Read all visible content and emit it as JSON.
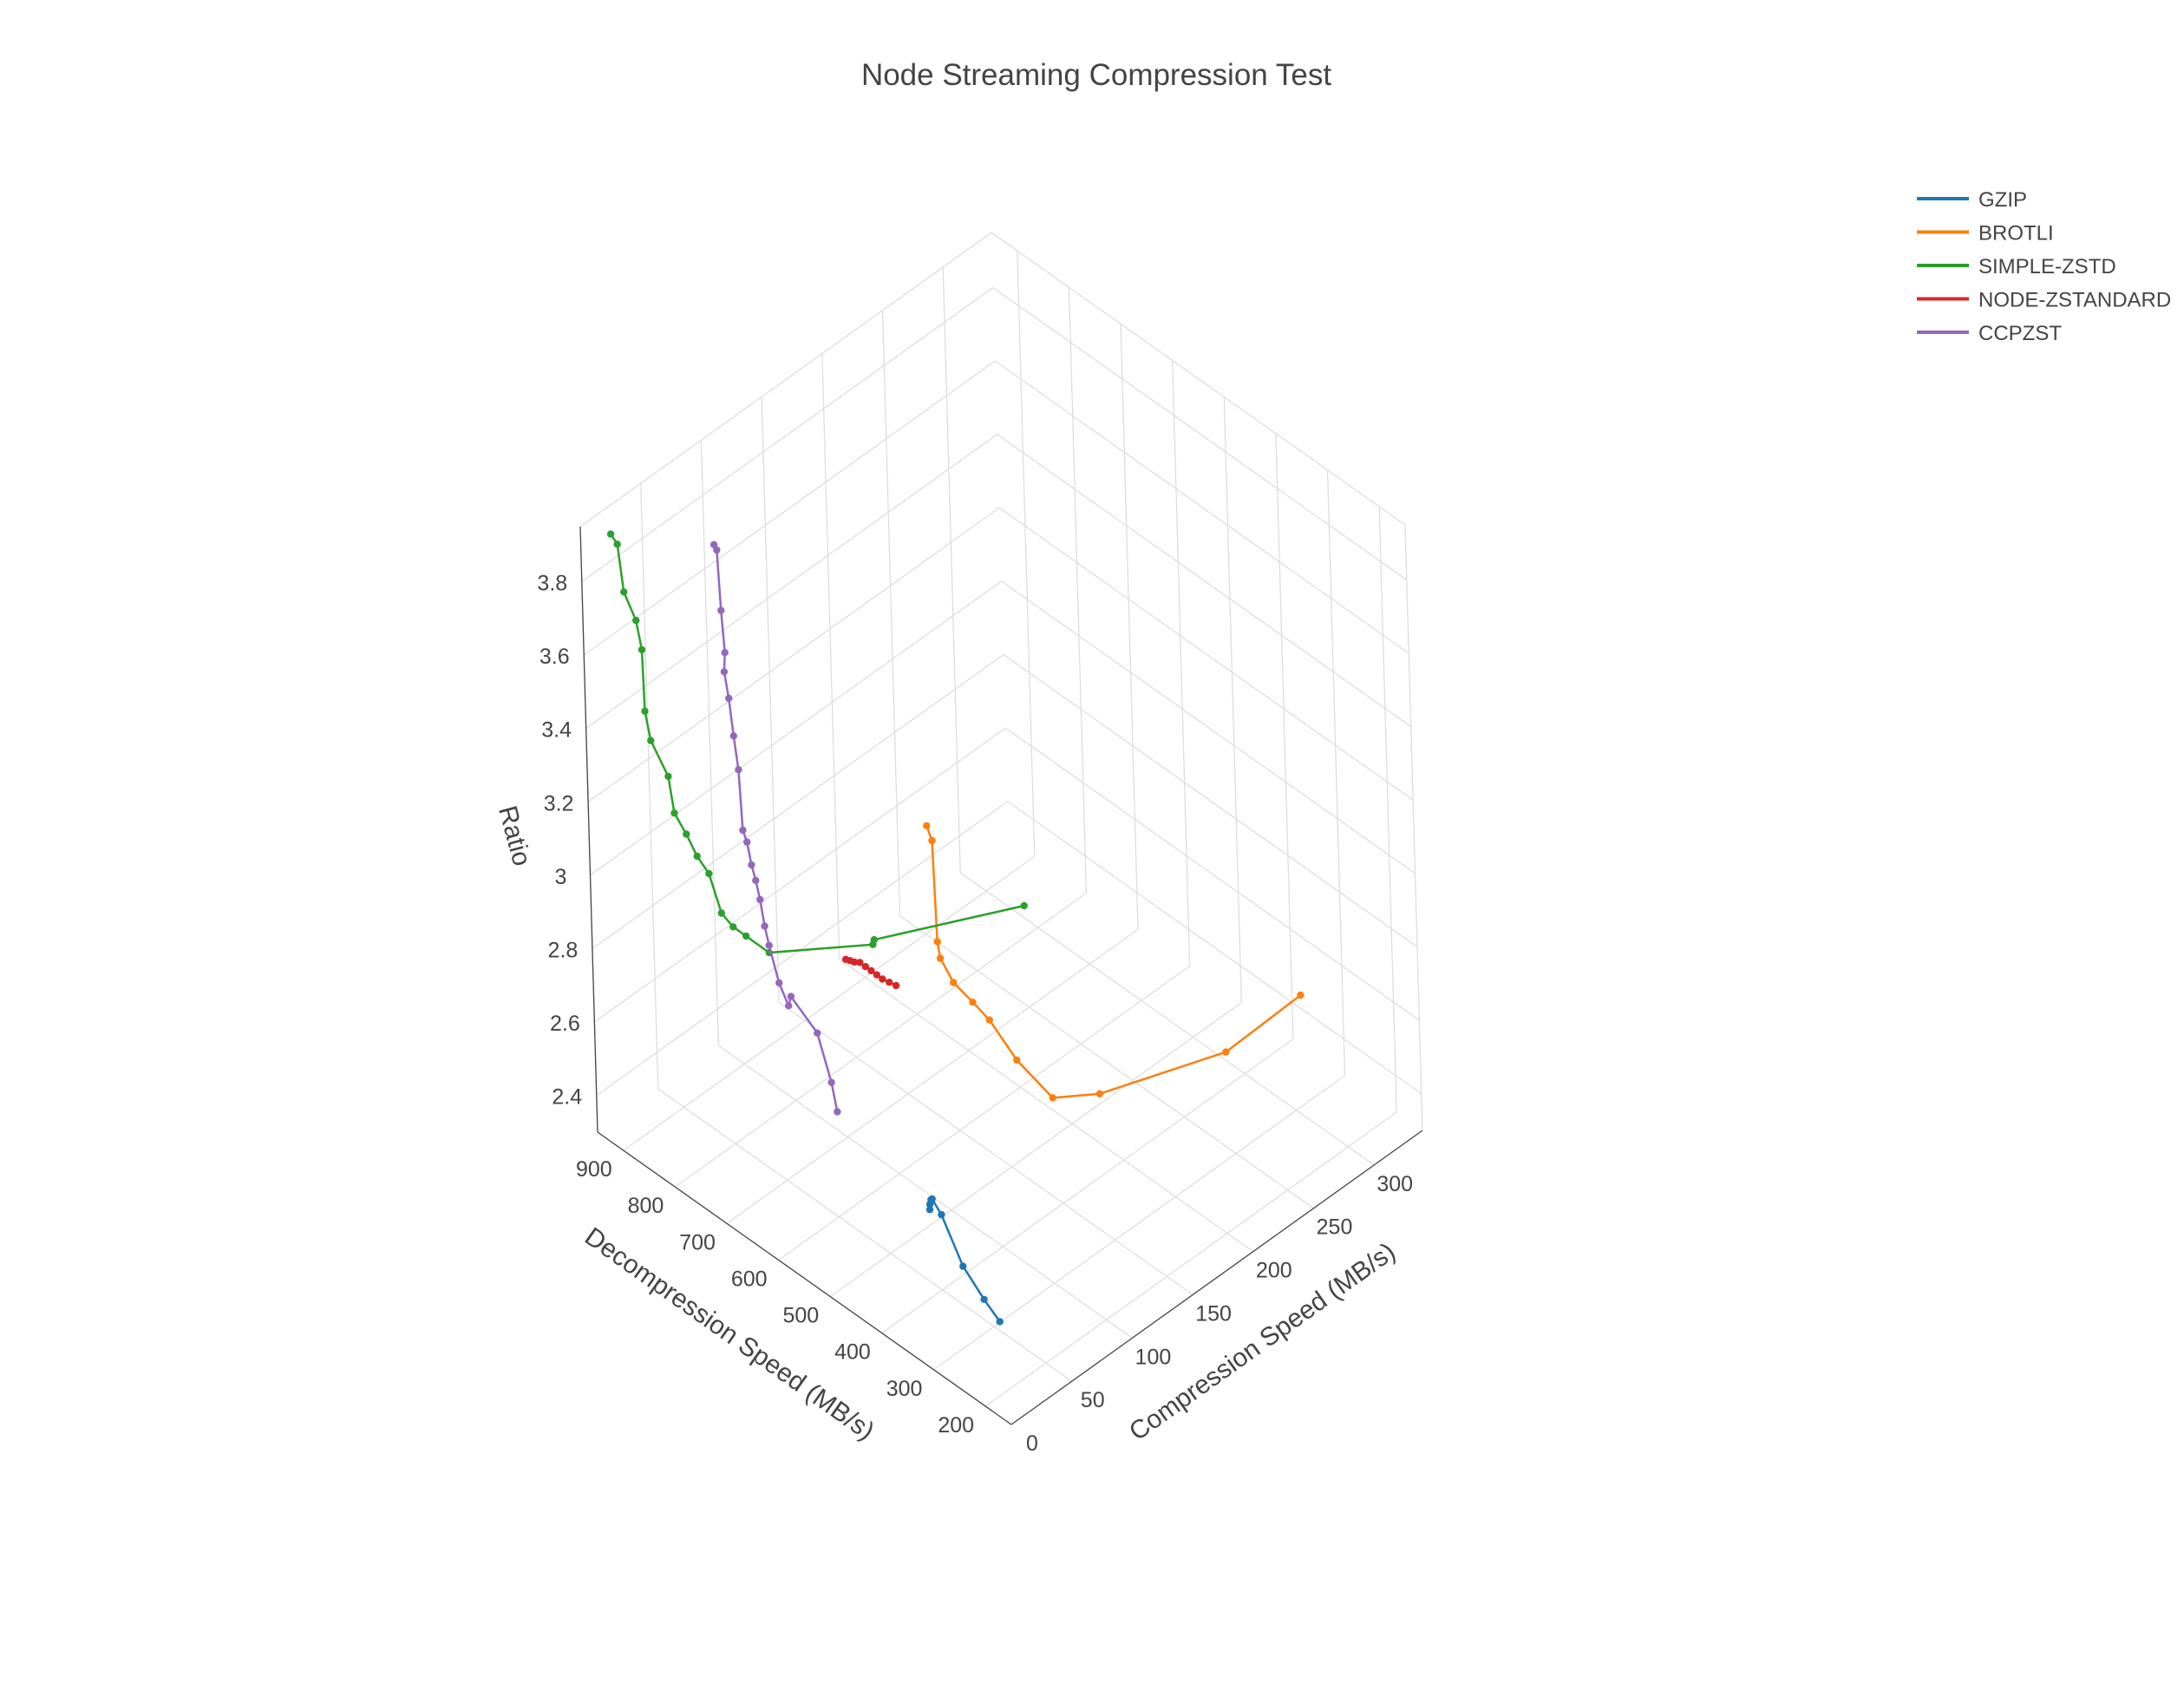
{
  "chart_data": {
    "type": "scatter3d",
    "title": "Node Streaming Compression Test",
    "legend_position": "top-right",
    "axes": {
      "x": {
        "label": "Compression Speed (MB/s)",
        "range": [
          0,
          340
        ],
        "ticks": [
          0,
          50,
          100,
          150,
          200,
          250,
          300
        ]
      },
      "y": {
        "label": "Decompression Speed (MB/s)",
        "range": [
          150,
          950
        ],
        "ticks": [
          200,
          300,
          400,
          500,
          600,
          700,
          800,
          900
        ]
      },
      "z": {
        "label": "Ratio",
        "range": [
          2.3,
          3.95
        ],
        "ticks": [
          2.4,
          2.6,
          2.8,
          3.0,
          3.2,
          3.4,
          3.6,
          3.8
        ],
        "tick_labels": [
          "2.4",
          "2.6",
          "2.8",
          "3",
          "3.2",
          "3.4",
          "3.6",
          "3.8"
        ]
      }
    },
    "series": [
      {
        "name": "GZIP",
        "color": "#1f77b4",
        "x": [
          30,
          26,
          22,
          18,
          15,
          14,
          13,
          12
        ],
        "y": [
          240,
          260,
          290,
          320,
          330,
          330,
          330,
          328
        ],
        "z": [
          2.42,
          2.47,
          2.54,
          2.66,
          2.7,
          2.7,
          2.69,
          2.68
        ]
      },
      {
        "name": "BROTLI",
        "color": "#ff7f0e",
        "x": [
          310,
          240,
          145,
          115,
          95,
          82,
          75,
          66,
          60,
          58,
          56,
          52
        ],
        "y": [
          310,
          290,
          310,
          330,
          350,
          370,
          385,
          400,
          410,
          410,
          410,
          410
        ],
        "z": [
          2.58,
          2.61,
          2.7,
          2.74,
          2.87,
          2.99,
          3.04,
          3.1,
          3.17,
          3.22,
          3.5,
          3.55
        ]
      },
      {
        "name": "SIMPLE-ZSTD",
        "color": "#2ca02c",
        "x": [
          125,
          52,
          55,
          16,
          14,
          12,
          11,
          10,
          9,
          9,
          8,
          8,
          7,
          7,
          6,
          6,
          5,
          5,
          4
        ],
        "y": [
          400,
          520,
          530,
          640,
          680,
          700,
          720,
          740,
          760,
          780,
          800,
          810,
          840,
          850,
          850,
          860,
          880,
          890,
          900
        ],
        "z": [
          3.17,
          3.13,
          3.1,
          3.06,
          3.07,
          3.08,
          3.1,
          3.19,
          3.22,
          3.26,
          3.3,
          3.39,
          3.46,
          3.53,
          3.7,
          3.77,
          3.83,
          3.95,
          3.97
        ]
      },
      {
        "name": "NODE-ZSTANDARD",
        "color": "#d62728",
        "x": [
          49,
          46,
          43,
          41,
          39,
          37,
          35,
          33,
          32,
          31
        ],
        "y": [
          472,
          478,
          484,
          490,
          496,
          502,
          508,
          514,
          520,
          526
        ],
        "z": [
          3.06,
          3.07,
          3.08,
          3.09,
          3.1,
          3.11,
          3.12,
          3.12,
          3.12,
          3.12
        ]
      },
      {
        "name": "CCPZST",
        "color": "#9467bd",
        "x": [
          10,
          10,
          12,
          12,
          14,
          15,
          16,
          17,
          18,
          19,
          20,
          21,
          22,
          24,
          25,
          26,
          27,
          28,
          30,
          32,
          34
        ],
        "y": [
          500,
          510,
          540,
          590,
          600,
          620,
          640,
          650,
          660,
          670,
          680,
          690,
          700,
          710,
          720,
          730,
          740,
          740,
          750,
          760,
          770
        ],
        "z": [
          2.78,
          2.85,
          2.95,
          3.0,
          2.96,
          3.0,
          3.08,
          3.12,
          3.18,
          3.22,
          3.25,
          3.3,
          3.32,
          3.47,
          3.55,
          3.64,
          3.7,
          3.75,
          3.85,
          4.0,
          4.0
        ]
      }
    ]
  }
}
